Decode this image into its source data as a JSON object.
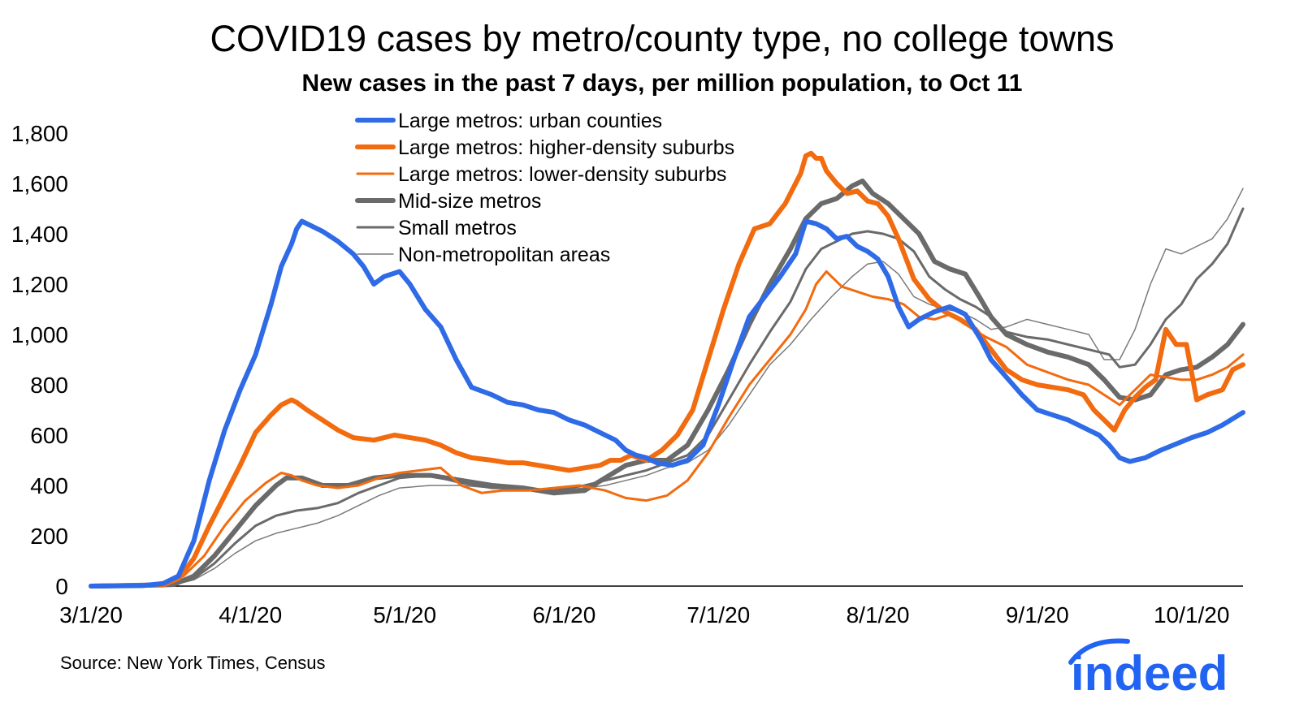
{
  "chart_data": {
    "type": "line",
    "title": "COVID19 cases by metro/county type, no college towns",
    "subtitle": "New cases in the past 7 days, per million population, to Oct 11",
    "xlabel": "",
    "ylabel": "",
    "ylim": [
      0,
      1800
    ],
    "yticks": [
      0,
      200,
      400,
      600,
      800,
      1000,
      1200,
      1400,
      1600,
      1800
    ],
    "ytick_labels": [
      "0",
      "200",
      "400",
      "600",
      "800",
      "1,000",
      "1,200",
      "1,400",
      "1,600",
      "1,800"
    ],
    "xticks": [
      "3/1/20",
      "4/1/20",
      "5/1/20",
      "6/1/20",
      "7/1/20",
      "8/1/20",
      "9/1/20",
      "10/1/20"
    ],
    "xtick_days": [
      0,
      31,
      61,
      92,
      122,
      153,
      184,
      214
    ],
    "xlim_days": [
      0,
      224
    ],
    "x_unit": "days since 3/1/20",
    "legend_position": "top-center",
    "grid": false,
    "series": [
      {
        "name": "Large metros: urban counties",
        "color": "#2f6be6",
        "width": 6,
        "x": [
          0,
          10,
          14,
          17,
          20,
          23,
          26,
          29,
          32,
          35,
          37,
          39,
          40,
          41,
          43,
          45,
          48,
          51,
          53,
          55,
          57,
          60,
          62,
          65,
          68,
          71,
          74,
          78,
          81,
          84,
          87,
          90,
          93,
          96,
          99,
          102,
          104,
          106,
          108,
          110,
          113,
          116,
          119,
          122,
          125,
          128,
          131,
          134,
          137,
          139,
          141,
          143,
          145,
          147,
          149,
          151,
          153,
          155,
          157,
          159,
          161,
          164,
          167,
          170,
          173,
          175,
          178,
          181,
          184,
          187,
          190,
          192,
          194,
          196,
          198,
          200,
          202,
          205,
          208,
          211,
          214,
          217,
          220,
          224
        ],
        "values": [
          0,
          2,
          10,
          40,
          180,
          420,
          620,
          780,
          920,
          1120,
          1270,
          1360,
          1420,
          1450,
          1430,
          1410,
          1370,
          1320,
          1270,
          1200,
          1230,
          1250,
          1200,
          1100,
          1030,
          900,
          790,
          760,
          730,
          720,
          700,
          690,
          660,
          640,
          610,
          580,
          540,
          520,
          510,
          490,
          480,
          500,
          560,
          720,
          900,
          1070,
          1150,
          1230,
          1320,
          1450,
          1440,
          1420,
          1380,
          1390,
          1350,
          1330,
          1300,
          1230,
          1110,
          1030,
          1060,
          1090,
          1110,
          1080,
          980,
          900,
          830,
          760,
          700,
          680,
          660,
          640,
          620,
          600,
          560,
          510,
          495,
          510,
          540,
          565,
          590,
          610,
          640,
          690
        ]
      },
      {
        "name": "Large metros: higher-density suburbs",
        "color": "#f26b0f",
        "width": 6,
        "x": [
          0,
          14,
          17,
          20,
          23,
          26,
          29,
          32,
          35,
          37,
          39,
          40,
          42,
          45,
          48,
          51,
          55,
          59,
          62,
          65,
          68,
          71,
          74,
          78,
          81,
          84,
          87,
          90,
          93,
          96,
          99,
          101,
          103,
          105,
          108,
          111,
          114,
          117,
          120,
          123,
          126,
          129,
          132,
          135,
          138,
          139,
          140,
          141,
          142,
          143,
          145,
          147,
          149,
          151,
          153,
          155,
          157,
          160,
          163,
          166,
          169,
          172,
          175,
          178,
          181,
          184,
          187,
          190,
          193,
          195,
          197,
          199,
          201,
          203,
          205,
          207,
          209,
          211,
          213,
          215,
          217,
          220,
          222,
          224
        ],
        "values": [
          0,
          4,
          30,
          110,
          240,
          360,
          480,
          610,
          680,
          720,
          740,
          730,
          700,
          660,
          620,
          590,
          580,
          600,
          590,
          580,
          560,
          530,
          510,
          500,
          490,
          490,
          480,
          470,
          460,
          470,
          480,
          500,
          500,
          520,
          500,
          540,
          600,
          700,
          900,
          1100,
          1280,
          1420,
          1440,
          1520,
          1640,
          1710,
          1720,
          1700,
          1700,
          1650,
          1600,
          1560,
          1570,
          1530,
          1520,
          1470,
          1380,
          1220,
          1140,
          1090,
          1060,
          1020,
          940,
          860,
          820,
          800,
          790,
          780,
          760,
          700,
          660,
          620,
          700,
          750,
          790,
          820,
          1020,
          960,
          960,
          740,
          760,
          780,
          860,
          880
        ]
      },
      {
        "name": "Large metros: lower-density suburbs",
        "color": "#f26b0f",
        "width": 3,
        "x": [
          0,
          14,
          18,
          22,
          26,
          30,
          34,
          37,
          39,
          41,
          44,
          48,
          52,
          56,
          60,
          64,
          68,
          72,
          76,
          80,
          85,
          90,
          95,
          100,
          104,
          108,
          112,
          116,
          120,
          124,
          128,
          132,
          136,
          139,
          141,
          143,
          146,
          149,
          152,
          155,
          158,
          161,
          164,
          167,
          170,
          174,
          178,
          182,
          186,
          190,
          194,
          197,
          200,
          203,
          206,
          209,
          212,
          215,
          218,
          221,
          224
        ],
        "values": [
          0,
          4,
          40,
          120,
          240,
          340,
          410,
          450,
          440,
          420,
          400,
          390,
          400,
          430,
          450,
          460,
          470,
          400,
          370,
          380,
          380,
          390,
          400,
          380,
          350,
          340,
          360,
          420,
          530,
          670,
          800,
          900,
          1000,
          1100,
          1200,
          1250,
          1190,
          1170,
          1150,
          1140,
          1120,
          1070,
          1060,
          1080,
          1040,
          990,
          950,
          880,
          850,
          820,
          800,
          760,
          720,
          780,
          840,
          830,
          820,
          820,
          840,
          870,
          920
        ]
      },
      {
        "name": "Mid-size metros",
        "color": "#6a6a6a",
        "width": 6,
        "x": [
          0,
          16,
          20,
          24,
          28,
          32,
          36,
          38,
          41,
          45,
          50,
          55,
          60,
          66,
          72,
          78,
          84,
          90,
          96,
          100,
          104,
          108,
          112,
          116,
          120,
          124,
          128,
          132,
          136,
          139,
          142,
          145,
          148,
          150,
          152,
          155,
          158,
          161,
          164,
          167,
          170,
          173,
          175,
          178,
          182,
          186,
          190,
          194,
          197,
          200,
          203,
          206,
          209,
          212,
          215,
          218,
          221,
          224
        ],
        "values": [
          0,
          6,
          40,
          120,
          220,
          320,
          400,
          430,
          430,
          400,
          400,
          430,
          440,
          440,
          420,
          400,
          390,
          370,
          380,
          430,
          480,
          500,
          500,
          560,
          700,
          860,
          1040,
          1200,
          1340,
          1460,
          1520,
          1540,
          1590,
          1610,
          1560,
          1520,
          1460,
          1400,
          1290,
          1260,
          1240,
          1140,
          1070,
          1000,
          960,
          930,
          910,
          880,
          820,
          750,
          740,
          760,
          840,
          860,
          870,
          910,
          960,
          1040
        ]
      },
      {
        "name": "Small metros",
        "color": "#6a6a6a",
        "width": 3,
        "x": [
          0,
          16,
          20,
          24,
          28,
          32,
          36,
          40,
          44,
          48,
          52,
          56,
          60,
          66,
          72,
          78,
          84,
          90,
          96,
          100,
          104,
          108,
          112,
          116,
          120,
          124,
          128,
          132,
          136,
          139,
          142,
          145,
          148,
          151,
          154,
          157,
          160,
          163,
          166,
          169,
          172,
          175,
          178,
          182,
          186,
          190,
          194,
          198,
          200,
          203,
          206,
          209,
          212,
          215,
          218,
          221,
          224
        ],
        "values": [
          0,
          5,
          30,
          90,
          170,
          240,
          280,
          300,
          310,
          330,
          370,
          400,
          430,
          440,
          410,
          390,
          390,
          380,
          400,
          420,
          440,
          460,
          490,
          520,
          600,
          740,
          880,
          1010,
          1130,
          1260,
          1340,
          1370,
          1400,
          1410,
          1400,
          1380,
          1330,
          1230,
          1180,
          1140,
          1110,
          1070,
          1010,
          990,
          980,
          960,
          940,
          920,
          870,
          880,
          960,
          1060,
          1120,
          1220,
          1280,
          1360,
          1500
        ]
      },
      {
        "name": "Non-metropolitan areas",
        "color": "#7a7a7a",
        "width": 1.5,
        "x": [
          0,
          16,
          20,
          24,
          28,
          32,
          36,
          40,
          44,
          48,
          52,
          56,
          60,
          66,
          72,
          78,
          84,
          90,
          96,
          100,
          104,
          108,
          112,
          116,
          120,
          124,
          128,
          132,
          136,
          140,
          144,
          148,
          151,
          154,
          157,
          160,
          163,
          166,
          169,
          172,
          175,
          178,
          182,
          186,
          190,
          194,
          197,
          200,
          203,
          206,
          209,
          212,
          215,
          218,
          221,
          224
        ],
        "values": [
          0,
          4,
          25,
          70,
          130,
          180,
          210,
          230,
          250,
          280,
          320,
          360,
          390,
          400,
          400,
          390,
          380,
          380,
          390,
          400,
          420,
          440,
          470,
          490,
          540,
          640,
          760,
          880,
          960,
          1060,
          1150,
          1230,
          1280,
          1290,
          1240,
          1150,
          1120,
          1100,
          1090,
          1060,
          1020,
          1030,
          1060,
          1040,
          1020,
          1000,
          900,
          900,
          1020,
          1200,
          1340,
          1320,
          1350,
          1380,
          1460,
          1580
        ]
      }
    ],
    "source": "Source: New York Times, Census"
  },
  "logo": {
    "text": "indeed",
    "color": "#2164f3"
  }
}
